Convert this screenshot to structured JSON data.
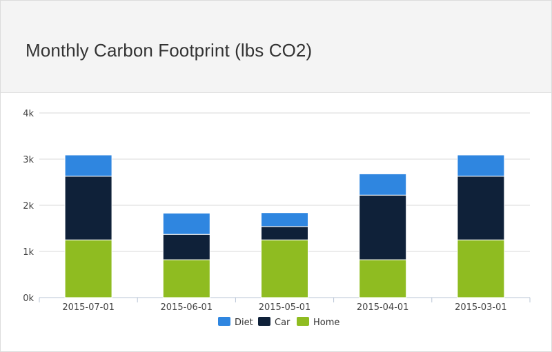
{
  "card": {
    "title": "Monthly Carbon Footprint (lbs CO2)"
  },
  "chart_data": {
    "type": "bar",
    "stacked": true,
    "title": "Monthly Carbon Footprint (lbs CO2)",
    "xlabel": "",
    "ylabel": "",
    "categories": [
      "2015-07-01",
      "2015-06-01",
      "2015-05-01",
      "2015-04-01",
      "2015-03-01"
    ],
    "series": [
      {
        "name": "Home",
        "color": "#8fbc21",
        "values": [
          1250,
          820,
          1250,
          820,
          1250
        ]
      },
      {
        "name": "Car",
        "color": "#0f2139",
        "values": [
          1380,
          550,
          290,
          1400,
          1380
        ]
      },
      {
        "name": "Diet",
        "color": "#2f86e0",
        "values": [
          460,
          460,
          300,
          460,
          460
        ]
      }
    ],
    "ylim": [
      0,
      4000
    ],
    "yticks": [
      0,
      1000,
      2000,
      3000,
      4000
    ],
    "ytick_labels": [
      "0k",
      "1k",
      "2k",
      "3k",
      "4k"
    ],
    "grid": true,
    "legend": {
      "position": "bottom-center",
      "order": [
        "Diet",
        "Car",
        "Home"
      ]
    }
  }
}
